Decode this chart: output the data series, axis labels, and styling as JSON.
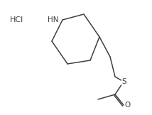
{
  "background_color": "#ffffff",
  "line_color": "#404040",
  "line_width": 1.1,
  "text_color": "#404040",
  "hcl_label": "HCl",
  "hn_label": "HN",
  "s_label": "S",
  "o_label": "O",
  "figsize": [
    2.14,
    1.62
  ],
  "dpi": 100,
  "font_size": 7.5
}
